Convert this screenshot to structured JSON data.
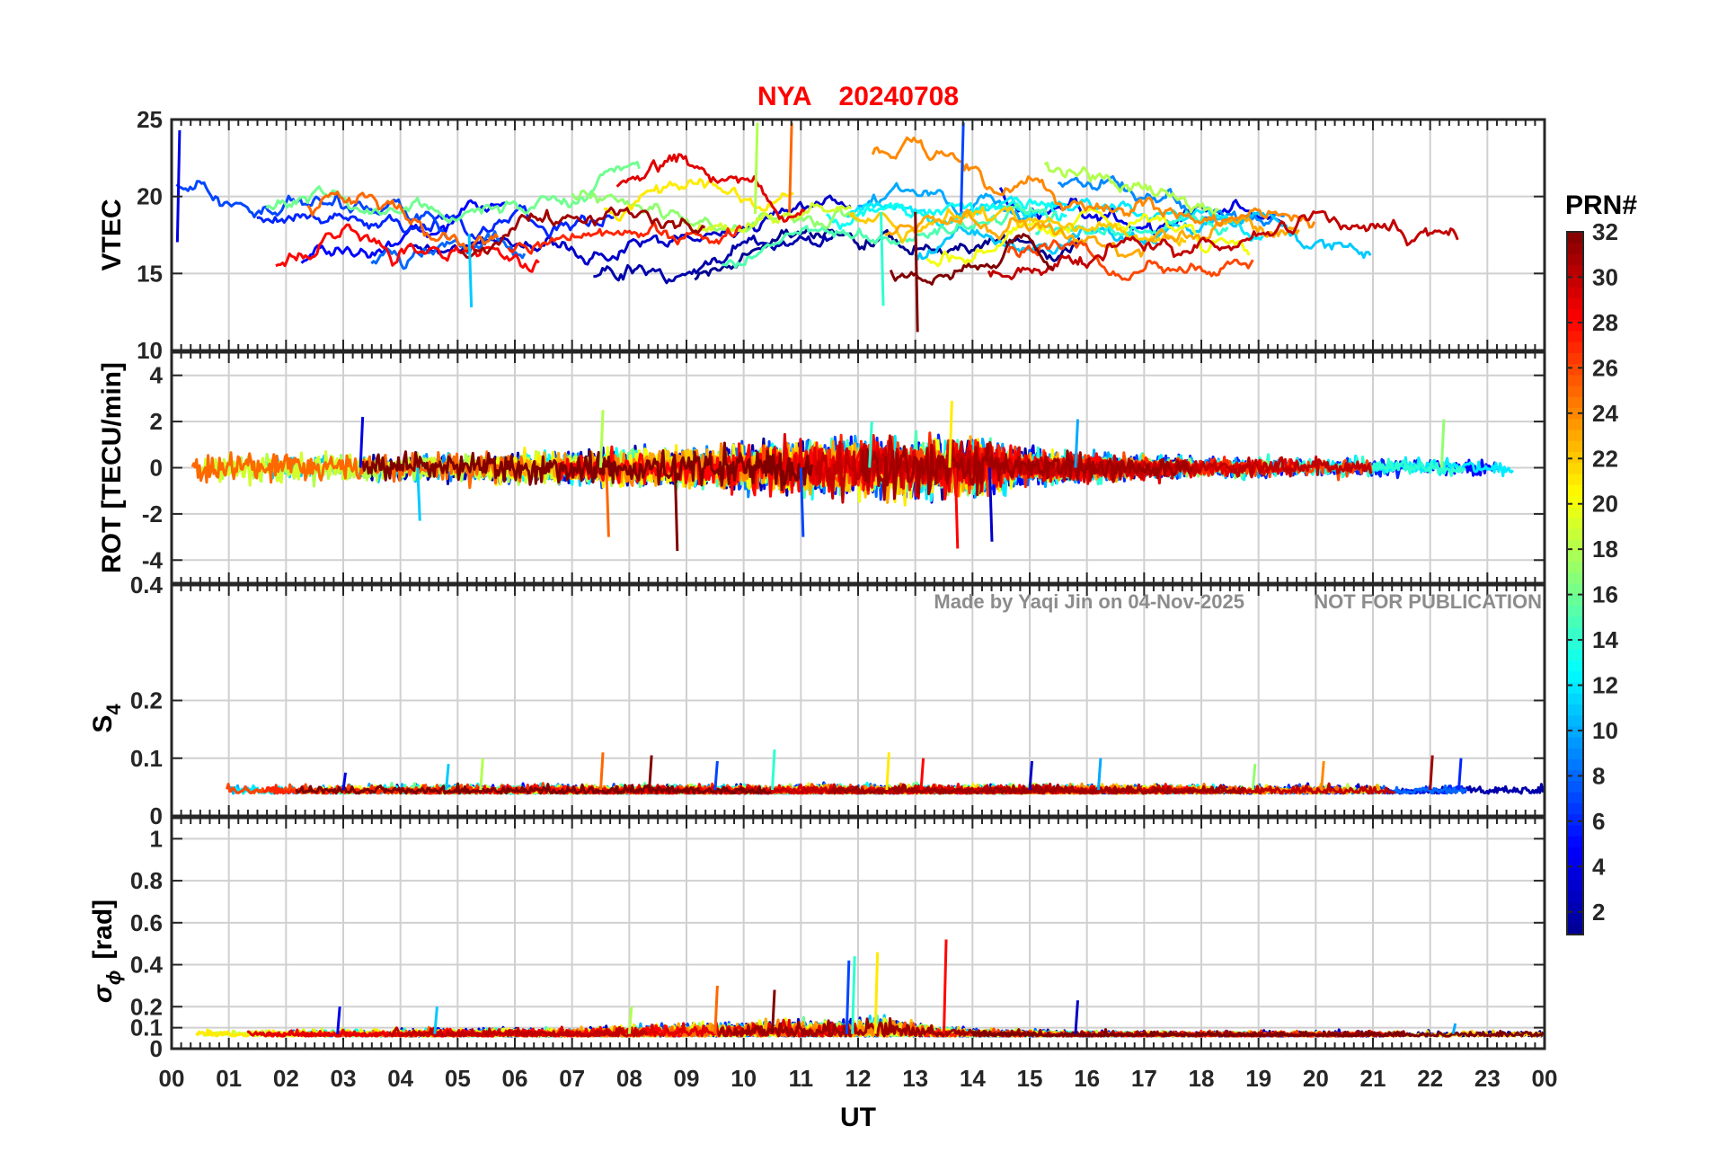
{
  "chart_data": {
    "type": "line",
    "title": {
      "station": "NYA",
      "date": "20240708"
    },
    "watermark": {
      "author": "Made by Yaqi Jin on 04-Nov-2025",
      "notice": "NOT FOR PUBLICATION"
    },
    "x": {
      "label": "UT",
      "range": [
        0,
        24
      ],
      "ticks": [
        0,
        1,
        2,
        3,
        4,
        5,
        6,
        7,
        8,
        9,
        10,
        11,
        12,
        13,
        14,
        15,
        16,
        17,
        18,
        19,
        20,
        21,
        22,
        23,
        24
      ],
      "tick_labels": [
        "00",
        "01",
        "02",
        "03",
        "04",
        "05",
        "06",
        "07",
        "08",
        "09",
        "10",
        "11",
        "12",
        "13",
        "14",
        "15",
        "16",
        "17",
        "18",
        "19",
        "20",
        "21",
        "22",
        "23",
        "00"
      ]
    },
    "panels": [
      {
        "id": "vtec",
        "ylabel": "VTEC",
        "ylim": [
          10,
          25
        ],
        "yticks": [
          10,
          15,
          20,
          25
        ],
        "ytick_labels": [
          "10",
          "15",
          "20",
          "25"
        ],
        "base": 18.0,
        "spread": 2.6,
        "trend": [
          [
            0,
            17.0
          ],
          [
            3,
            18.0
          ],
          [
            5,
            17.5
          ],
          [
            8,
            18.5
          ],
          [
            11,
            19.0
          ],
          [
            14,
            19.0
          ],
          [
            17,
            18.0
          ],
          [
            20,
            17.5
          ],
          [
            24,
            17.0
          ]
        ]
      },
      {
        "id": "rot",
        "ylabel": "ROT [TECU/min]",
        "ylim": [
          -5,
          5
        ],
        "yticks": [
          -4,
          -2,
          0,
          2,
          4
        ],
        "ytick_labels": [
          "-4",
          "-2",
          "0",
          "2",
          "4"
        ],
        "base": 0.0,
        "spread": 0.45,
        "activity": [
          [
            0,
            0.9
          ],
          [
            6,
            0.9
          ],
          [
            9,
            1.2
          ],
          [
            11,
            1.6
          ],
          [
            14,
            1.8
          ],
          [
            15,
            1.0
          ],
          [
            18,
            0.6
          ],
          [
            24,
            0.5
          ]
        ]
      },
      {
        "id": "s4",
        "ylabel_main": "S",
        "ylabel_sub": "4",
        "ylim": [
          0,
          0.4
        ],
        "yticks": [
          0,
          0.1,
          0.2
        ],
        "ytick_labels": [
          "0",
          "0.1",
          "0.2"
        ],
        "top_label": "0.4",
        "base": 0.045,
        "spread": 0.012
      },
      {
        "id": "sigma_phi",
        "ylabel_main": "σ",
        "ylabel_sub": "ϕ",
        "ylabel_unit": "[rad]",
        "ylim": [
          0,
          1.1
        ],
        "yticks": [
          0,
          0.1,
          0.2,
          0.4,
          0.6,
          0.8,
          1
        ],
        "ytick_labels": [
          "0",
          "0.1",
          "0.2",
          "0.4",
          "0.6",
          "0.8",
          "1"
        ],
        "base": 0.07,
        "spread": 0.018,
        "activity": [
          [
            0,
            1.0
          ],
          [
            7,
            1.2
          ],
          [
            9,
            2.0
          ],
          [
            11,
            2.4
          ],
          [
            12.5,
            2.8
          ],
          [
            13.5,
            1.3
          ],
          [
            16,
            0.8
          ],
          [
            24,
            0.8
          ]
        ]
      }
    ],
    "series": {
      "name": "PRN",
      "count": 32,
      "prns": [
        1,
        2,
        3,
        4,
        5,
        6,
        7,
        8,
        9,
        10,
        11,
        12,
        13,
        14,
        15,
        16,
        17,
        18,
        19,
        20,
        21,
        22,
        23,
        24,
        25,
        26,
        27,
        28,
        29,
        30,
        31,
        32
      ]
    },
    "annotations": {
      "s4_peaks": [
        [
          3.0,
          0.075
        ],
        [
          4.8,
          0.09
        ],
        [
          5.4,
          0.1
        ],
        [
          7.5,
          0.11
        ],
        [
          8.35,
          0.105
        ],
        [
          9.5,
          0.095
        ],
        [
          10.5,
          0.115
        ],
        [
          12.5,
          0.11
        ],
        [
          13.1,
          0.1
        ],
        [
          15.0,
          0.095
        ],
        [
          16.2,
          0.1
        ],
        [
          18.9,
          0.09
        ],
        [
          20.1,
          0.095
        ],
        [
          22.0,
          0.105
        ],
        [
          22.5,
          0.1
        ]
      ],
      "sigma_phi_peaks": [
        [
          2.9,
          0.2
        ],
        [
          4.6,
          0.2
        ],
        [
          8.0,
          0.2
        ],
        [
          9.5,
          0.3
        ],
        [
          10.5,
          0.28
        ],
        [
          11.8,
          0.42
        ],
        [
          11.9,
          0.44
        ],
        [
          12.3,
          0.46
        ],
        [
          13.5,
          0.52
        ],
        [
          15.8,
          0.23
        ],
        [
          22.4,
          0.12
        ]
      ],
      "rot_spikes": [
        [
          3.3,
          2.2
        ],
        [
          4.3,
          -2.3
        ],
        [
          7.5,
          2.5
        ],
        [
          7.6,
          -3.0
        ],
        [
          8.8,
          -3.6
        ],
        [
          11.0,
          -3.0
        ],
        [
          12.2,
          2.0
        ],
        [
          13.6,
          2.9
        ],
        [
          13.7,
          -3.5
        ],
        [
          14.3,
          -3.2
        ],
        [
          15.8,
          2.1
        ],
        [
          22.2,
          2.1
        ]
      ],
      "vtec_events": [
        [
          0.1,
          24.3
        ],
        [
          5.2,
          12.8
        ],
        [
          10.2,
          24.8
        ],
        [
          10.8,
          24.8
        ],
        [
          13.0,
          11.2
        ],
        [
          13.8,
          24.8
        ],
        [
          12.4,
          12.9
        ]
      ]
    },
    "colorbar": {
      "label": "PRN#",
      "range": [
        1,
        32
      ],
      "ticks": [
        2,
        4,
        6,
        8,
        10,
        12,
        14,
        16,
        18,
        20,
        22,
        24,
        26,
        28,
        30,
        32
      ],
      "tick_labels": [
        "2",
        "4",
        "6",
        "8",
        "10",
        "12",
        "14",
        "16",
        "18",
        "20",
        "22",
        "24",
        "26",
        "28",
        "30",
        "32"
      ],
      "colormap": [
        "#00008f",
        "#0000ff",
        "#0080ff",
        "#00ffff",
        "#80ff80",
        "#ffff00",
        "#ff8000",
        "#ff0000",
        "#800000"
      ]
    }
  }
}
